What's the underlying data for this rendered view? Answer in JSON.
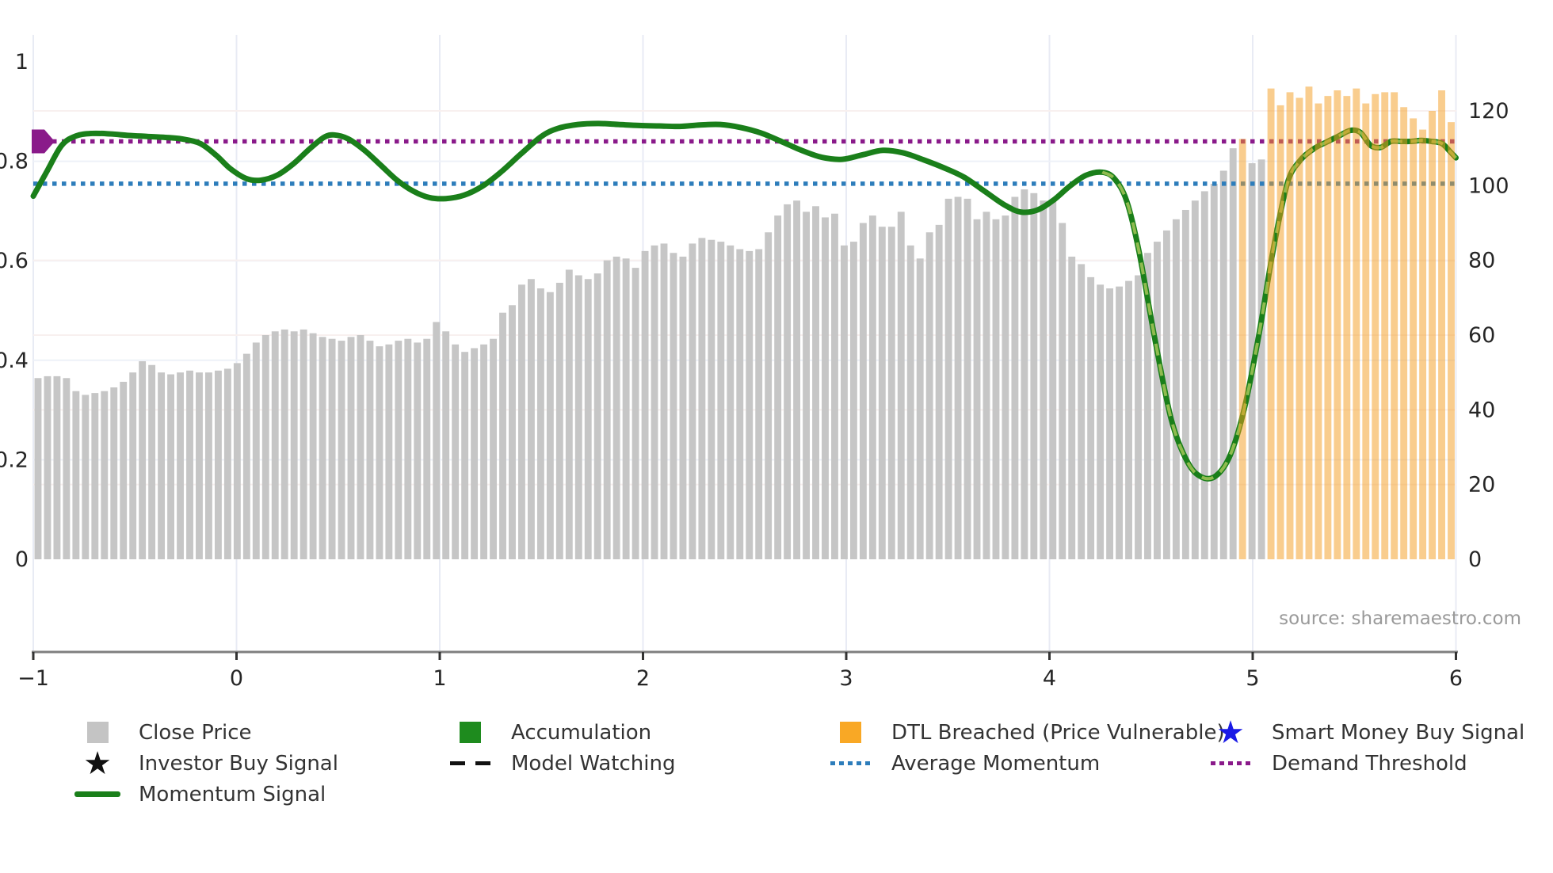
{
  "source_text": "source: sharemaestro.com",
  "colors": {
    "bar_gray": "#c6c6c6",
    "bar_orange": "#f49b1d",
    "bar_orange_opacity": 0.5,
    "momentum_green": "#1a7f1a",
    "watching_overlay": "#8fbb4f",
    "avg_blue": "#2d7dbb",
    "demand_purple": "#8a1a8a",
    "axis_spine": "#7f7f7f",
    "tick_text": "#262626",
    "grid_vertical": "#e8ebf4",
    "grid_h_left": "#eef1f8",
    "grid_h_right": "#f8f0ef"
  },
  "chart_data": {
    "type": "combo-bar-line",
    "title": "",
    "x_axis": {
      "tick_labels": [
        "−1",
        "0",
        "1",
        "2",
        "3",
        "4",
        "5",
        "6"
      ],
      "tick_values": [
        -1,
        0,
        1,
        2,
        3,
        4,
        5,
        6
      ],
      "range": [
        -1,
        6
      ]
    },
    "left_axis": {
      "tick_labels": [
        "0",
        "0.2",
        "0.4",
        "0.6",
        "0.8",
        "1"
      ],
      "tick_values": [
        0,
        0.2,
        0.4,
        0.6,
        0.8,
        1
      ],
      "range": [
        0,
        1
      ]
    },
    "right_axis": {
      "tick_labels": [
        "0",
        "20",
        "40",
        "60",
        "80",
        "100",
        "120"
      ],
      "tick_values": [
        0,
        20,
        40,
        60,
        80,
        100,
        120
      ],
      "range": [
        0,
        133
      ]
    },
    "bars": {
      "name": "Close Price",
      "axis": "right",
      "x_start": -1.0,
      "x_step": 0.0486,
      "values": [
        48.5,
        49,
        49,
        48.5,
        45,
        44,
        44.5,
        45,
        46,
        47.5,
        50,
        53,
        52,
        50,
        49.5,
        50,
        50.5,
        50,
        50,
        50.5,
        51,
        52.5,
        55,
        58,
        60,
        61,
        61.5,
        61,
        61.5,
        60.5,
        59.5,
        59,
        58.5,
        59.5,
        60,
        58.5,
        57,
        57.5,
        58.5,
        59,
        58,
        59,
        63.5,
        61,
        57.5,
        55.5,
        56.5,
        57.5,
        59,
        66,
        68,
        73.5,
        75,
        72.5,
        71.5,
        74,
        77.5,
        76,
        75,
        76.5,
        80,
        81,
        80.5,
        78,
        82.5,
        84,
        84.5,
        82,
        81,
        84.5,
        86,
        85.5,
        85,
        84,
        83,
        82.5,
        83,
        87.5,
        92,
        95,
        96,
        93,
        94.5,
        91.5,
        92.5,
        84,
        85,
        90,
        92,
        89,
        89,
        93,
        84,
        80.5,
        87.5,
        89.5,
        96.5,
        97,
        96.5,
        91,
        93,
        91,
        92,
        97,
        99,
        98,
        96,
        96,
        90,
        81,
        79,
        75.5,
        73.5,
        72.5,
        73,
        74.5,
        76,
        82,
        85,
        88,
        91,
        93.5,
        96,
        98.5,
        100.5,
        104,
        110,
        112.5,
        106,
        107,
        126,
        121.5,
        125,
        123.5,
        126.5,
        122,
        124,
        125.5,
        124,
        126,
        122,
        124.5,
        125,
        125,
        121,
        118,
        115,
        120,
        125.5,
        117
      ],
      "breached_indices": [
        127,
        130,
        131,
        132,
        133,
        134,
        135,
        136,
        137,
        138,
        139,
        140,
        141,
        142,
        143,
        144,
        145,
        146,
        147,
        148,
        149
      ]
    },
    "momentum_line": {
      "name": "Momentum Signal",
      "axis": "left",
      "points": [
        [
          -1.0,
          0.73
        ],
        [
          -0.93,
          0.782
        ],
        [
          -0.86,
          0.832
        ],
        [
          -0.79,
          0.851
        ],
        [
          -0.71,
          0.856
        ],
        [
          -0.62,
          0.855
        ],
        [
          -0.53,
          0.852
        ],
        [
          -0.44,
          0.85
        ],
        [
          -0.35,
          0.848
        ],
        [
          -0.27,
          0.845
        ],
        [
          -0.18,
          0.836
        ],
        [
          -0.1,
          0.812
        ],
        [
          -0.03,
          0.785
        ],
        [
          0.05,
          0.765
        ],
        [
          0.12,
          0.762
        ],
        [
          0.2,
          0.772
        ],
        [
          0.28,
          0.795
        ],
        [
          0.36,
          0.825
        ],
        [
          0.43,
          0.848
        ],
        [
          0.48,
          0.853
        ],
        [
          0.55,
          0.845
        ],
        [
          0.63,
          0.822
        ],
        [
          0.71,
          0.792
        ],
        [
          0.79,
          0.762
        ],
        [
          0.87,
          0.74
        ],
        [
          0.95,
          0.727
        ],
        [
          1.03,
          0.725
        ],
        [
          1.12,
          0.732
        ],
        [
          1.21,
          0.75
        ],
        [
          1.3,
          0.778
        ],
        [
          1.4,
          0.815
        ],
        [
          1.5,
          0.85
        ],
        [
          1.58,
          0.866
        ],
        [
          1.68,
          0.874
        ],
        [
          1.78,
          0.876
        ],
        [
          1.88,
          0.874
        ],
        [
          1.98,
          0.872
        ],
        [
          2.08,
          0.871
        ],
        [
          2.18,
          0.87
        ],
        [
          2.28,
          0.873
        ],
        [
          2.38,
          0.874
        ],
        [
          2.48,
          0.868
        ],
        [
          2.58,
          0.857
        ],
        [
          2.68,
          0.84
        ],
        [
          2.78,
          0.822
        ],
        [
          2.88,
          0.808
        ],
        [
          2.98,
          0.804
        ],
        [
          3.08,
          0.813
        ],
        [
          3.18,
          0.822
        ],
        [
          3.28,
          0.817
        ],
        [
          3.38,
          0.803
        ],
        [
          3.48,
          0.787
        ],
        [
          3.58,
          0.768
        ],
        [
          3.68,
          0.74
        ],
        [
          3.78,
          0.712
        ],
        [
          3.86,
          0.698
        ],
        [
          3.94,
          0.702
        ],
        [
          4.02,
          0.722
        ],
        [
          4.1,
          0.75
        ],
        [
          4.18,
          0.772
        ],
        [
          4.26,
          0.778
        ],
        [
          4.32,
          0.765
        ],
        [
          4.38,
          0.72
        ],
        [
          4.44,
          0.62
        ],
        [
          4.52,
          0.44
        ],
        [
          4.6,
          0.28
        ],
        [
          4.68,
          0.195
        ],
        [
          4.75,
          0.165
        ],
        [
          4.82,
          0.168
        ],
        [
          4.89,
          0.21
        ],
        [
          4.96,
          0.305
        ],
        [
          5.03,
          0.45
        ],
        [
          5.1,
          0.62
        ],
        [
          5.17,
          0.755
        ],
        [
          5.23,
          0.8
        ],
        [
          5.3,
          0.825
        ],
        [
          5.36,
          0.838
        ],
        [
          5.42,
          0.85
        ],
        [
          5.48,
          0.862
        ],
        [
          5.53,
          0.858
        ],
        [
          5.58,
          0.832
        ],
        [
          5.63,
          0.828
        ],
        [
          5.68,
          0.84
        ],
        [
          5.73,
          0.84
        ],
        [
          5.78,
          0.84
        ],
        [
          5.83,
          0.842
        ],
        [
          5.88,
          0.84
        ],
        [
          5.93,
          0.836
        ],
        [
          5.97,
          0.82
        ],
        [
          6.0,
          0.807
        ]
      ]
    },
    "model_watching_overlay": {
      "name": "Model Watching",
      "x_range": [
        4.26,
        6.0
      ],
      "style": "dashed"
    },
    "average_momentum": {
      "name": "Average Momentum",
      "axis": "left",
      "value": 0.755,
      "style": "dotted"
    },
    "demand_threshold": {
      "name": "Demand Threshold",
      "axis": "left",
      "value": 0.84,
      "style": "dotted",
      "start_marker": "purple-pentagon"
    },
    "grid": {
      "vertical_at_x_ticks": true,
      "horizontal_left_ticks": [
        0.2,
        0.4,
        0.6,
        0.8
      ],
      "horizontal_right_ticks": [
        20,
        40,
        60,
        80,
        120
      ]
    }
  },
  "legend": {
    "columns": [
      {
        "items": [
          {
            "label": "Close Price",
            "marker": "square",
            "color": "#c4c4c4"
          },
          {
            "label": "Investor Buy Signal",
            "marker": "star",
            "color": "#111111"
          },
          {
            "label": "Momentum Signal",
            "marker": "line",
            "color": "#1a7f1a"
          }
        ]
      },
      {
        "items": [
          {
            "label": "Accumulation",
            "marker": "square",
            "color": "#1e8b1e"
          },
          {
            "label": "Model Watching",
            "marker": "dash",
            "color": "#111111"
          }
        ]
      },
      {
        "items": [
          {
            "label": "DTL Breached (Price Vulnerable)",
            "marker": "square",
            "color": "#f9a825"
          },
          {
            "label": "Average Momentum",
            "marker": "dots",
            "color": "#2d7dbb"
          }
        ]
      },
      {
        "items": [
          {
            "label": "Smart Money Buy Signal",
            "marker": "star",
            "color": "#1a1ae6"
          },
          {
            "label": "Demand Threshold",
            "marker": "dots",
            "color": "#8a1a8a"
          }
        ]
      }
    ]
  }
}
